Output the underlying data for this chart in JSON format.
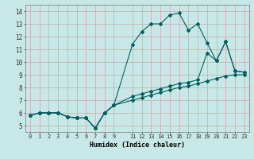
{
  "xlabel": "Humidex (Indice chaleur)",
  "bg_color": "#c8e8e8",
  "grid_color": "#c8a8a8",
  "line_color": "#006060",
  "xlim": [
    -0.5,
    23.5
  ],
  "ylim": [
    4.5,
    14.5
  ],
  "xticks": [
    0,
    1,
    2,
    3,
    4,
    5,
    6,
    7,
    8,
    9,
    11,
    12,
    13,
    14,
    15,
    16,
    17,
    18,
    19,
    20,
    21,
    22,
    23
  ],
  "yticks": [
    5,
    6,
    7,
    8,
    9,
    10,
    11,
    12,
    13,
    14
  ],
  "line1_x": [
    0,
    1,
    2,
    3,
    4,
    5,
    6,
    7,
    8,
    9,
    11,
    12,
    13,
    14,
    15,
    16,
    17,
    18,
    19,
    20,
    21,
    22,
    23
  ],
  "line1_y": [
    5.8,
    6.0,
    6.0,
    6.0,
    5.7,
    5.6,
    5.6,
    4.8,
    6.0,
    6.6,
    11.4,
    12.4,
    13.0,
    13.0,
    13.7,
    13.85,
    12.5,
    13.0,
    11.5,
    10.1,
    11.6,
    9.3,
    9.2
  ],
  "line2_x": [
    0,
    1,
    2,
    3,
    4,
    5,
    6,
    7,
    8,
    9,
    11,
    12,
    13,
    14,
    15,
    16,
    17,
    18,
    19,
    20,
    21,
    22,
    23
  ],
  "line2_y": [
    5.8,
    6.0,
    6.0,
    6.0,
    5.7,
    5.6,
    5.6,
    4.8,
    6.0,
    6.6,
    7.3,
    7.5,
    7.7,
    7.9,
    8.1,
    8.3,
    8.4,
    8.6,
    10.7,
    10.1,
    11.6,
    9.3,
    9.2
  ],
  "line3_x": [
    0,
    1,
    2,
    3,
    4,
    5,
    6,
    7,
    8,
    9,
    11,
    12,
    13,
    14,
    15,
    16,
    17,
    18,
    19,
    20,
    21,
    22,
    23
  ],
  "line3_y": [
    5.8,
    6.0,
    6.0,
    6.0,
    5.7,
    5.6,
    5.6,
    4.8,
    6.0,
    6.6,
    7.0,
    7.2,
    7.4,
    7.6,
    7.8,
    8.0,
    8.1,
    8.3,
    8.5,
    8.7,
    8.9,
    9.0,
    9.0
  ]
}
